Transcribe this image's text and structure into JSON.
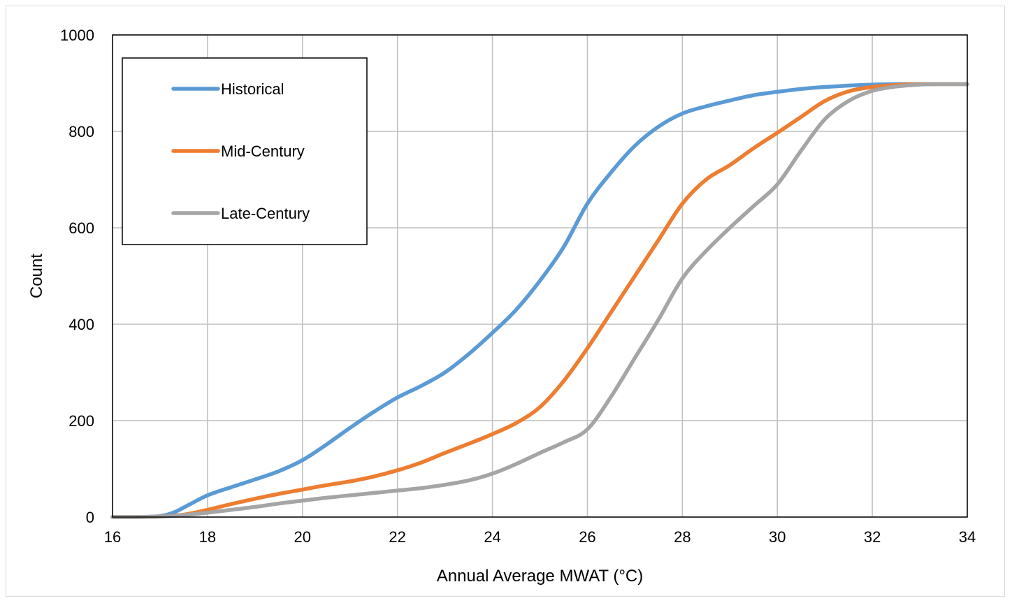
{
  "chart_data": {
    "type": "line",
    "title": "",
    "xlabel": "Annual Average MWAT (°C)",
    "ylabel": "Count",
    "xlim": [
      16,
      34
    ],
    "ylim": [
      0,
      1000
    ],
    "xticks": [
      16,
      18,
      20,
      22,
      24,
      26,
      28,
      30,
      32,
      34
    ],
    "yticks": [
      0,
      200,
      400,
      600,
      800,
      1000
    ],
    "grid": true,
    "legend_position": "top-left",
    "series": [
      {
        "name": "Historical",
        "color": "#5b9bd5",
        "x": [
          16,
          16.5,
          17,
          17.3,
          17.6,
          18,
          18.5,
          19,
          19.5,
          20,
          20.5,
          21,
          21.5,
          22,
          22.5,
          23,
          23.5,
          24,
          24.5,
          25,
          25.5,
          26,
          26.5,
          27,
          27.5,
          28,
          28.5,
          29,
          29.5,
          30,
          30.5,
          31,
          31.5,
          32,
          32.5,
          33,
          33.5,
          34
        ],
        "y": [
          0,
          0,
          2,
          10,
          25,
          45,
          62,
          78,
          95,
          118,
          150,
          185,
          218,
          248,
          272,
          300,
          338,
          382,
          430,
          490,
          560,
          650,
          715,
          770,
          810,
          837,
          852,
          864,
          875,
          882,
          888,
          892,
          895,
          897,
          898,
          898,
          898,
          898
        ]
      },
      {
        "name": "Mid-Century",
        "color": "#ed7d31",
        "x": [
          16,
          16.5,
          17,
          17.5,
          18,
          18.5,
          19,
          19.5,
          20,
          20.5,
          21,
          21.5,
          22,
          22.5,
          23,
          23.5,
          24,
          24.5,
          25,
          25.5,
          26,
          26.5,
          27,
          27.5,
          28,
          28.5,
          29,
          29.5,
          30,
          30.5,
          31,
          31.5,
          32,
          32.5,
          33,
          33.5,
          34
        ],
        "y": [
          0,
          0,
          1,
          5,
          15,
          27,
          38,
          48,
          57,
          66,
          74,
          84,
          97,
          113,
          133,
          152,
          172,
          195,
          228,
          282,
          350,
          425,
          500,
          575,
          650,
          700,
          730,
          765,
          797,
          830,
          863,
          883,
          892,
          896,
          898,
          898,
          898
        ]
      },
      {
        "name": "Late-Century",
        "color": "#a5a5a5",
        "x": [
          16,
          16.5,
          17,
          17.5,
          18,
          18.5,
          19,
          19.5,
          20,
          20.5,
          21,
          21.5,
          22,
          22.5,
          23,
          23.5,
          24,
          24.5,
          25,
          25.5,
          26,
          26.5,
          27,
          27.5,
          28,
          28.5,
          29,
          29.5,
          30,
          30.5,
          31,
          31.5,
          32,
          32.5,
          33,
          33.5,
          34
        ],
        "y": [
          0,
          0,
          1,
          4,
          9,
          15,
          21,
          28,
          34,
          40,
          45,
          50,
          55,
          60,
          67,
          76,
          90,
          110,
          133,
          155,
          182,
          250,
          330,
          410,
          495,
          552,
          600,
          645,
          690,
          760,
          825,
          863,
          884,
          893,
          897,
          898,
          898
        ]
      }
    ]
  }
}
